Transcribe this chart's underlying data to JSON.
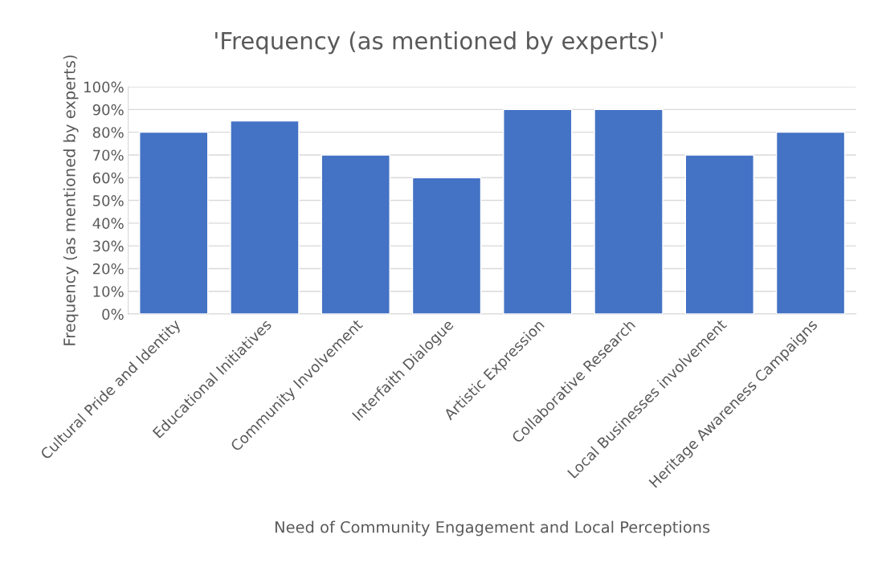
{
  "chart_data": {
    "type": "bar",
    "title": "'Frequency (as mentioned by experts)'",
    "xlabel": "Need of Community Engagement and Local Perceptions",
    "ylabel": "Frequency (as mentioned by experts)",
    "categories": [
      "Cultural Pride and Identity",
      "Educational Initiatives",
      "Community Involvement",
      "Interfaith Dialogue",
      "Artistic Expression",
      "Collaborative Research",
      "Local Businesses involvement",
      "Heritage Awareness Campaigns"
    ],
    "series": [
      {
        "color": "#4472c4",
        "values": [
          80,
          85,
          70,
          60,
          90,
          90,
          70,
          80
        ]
      }
    ],
    "ylim": [
      0,
      100
    ],
    "yticks": [
      {
        "value": 0,
        "label": "0%"
      },
      {
        "value": 10,
        "label": "10%"
      },
      {
        "value": 20,
        "label": "20%"
      },
      {
        "value": 30,
        "label": "30%"
      },
      {
        "value": 40,
        "label": "40%"
      },
      {
        "value": 50,
        "label": "50%"
      },
      {
        "value": 60,
        "label": "60%"
      },
      {
        "value": 70,
        "label": "70%"
      },
      {
        "value": 80,
        "label": "80%"
      },
      {
        "value": 90,
        "label": "90%"
      },
      {
        "value": 100,
        "label": "100%"
      }
    ],
    "grid": "y",
    "legend": false
  }
}
